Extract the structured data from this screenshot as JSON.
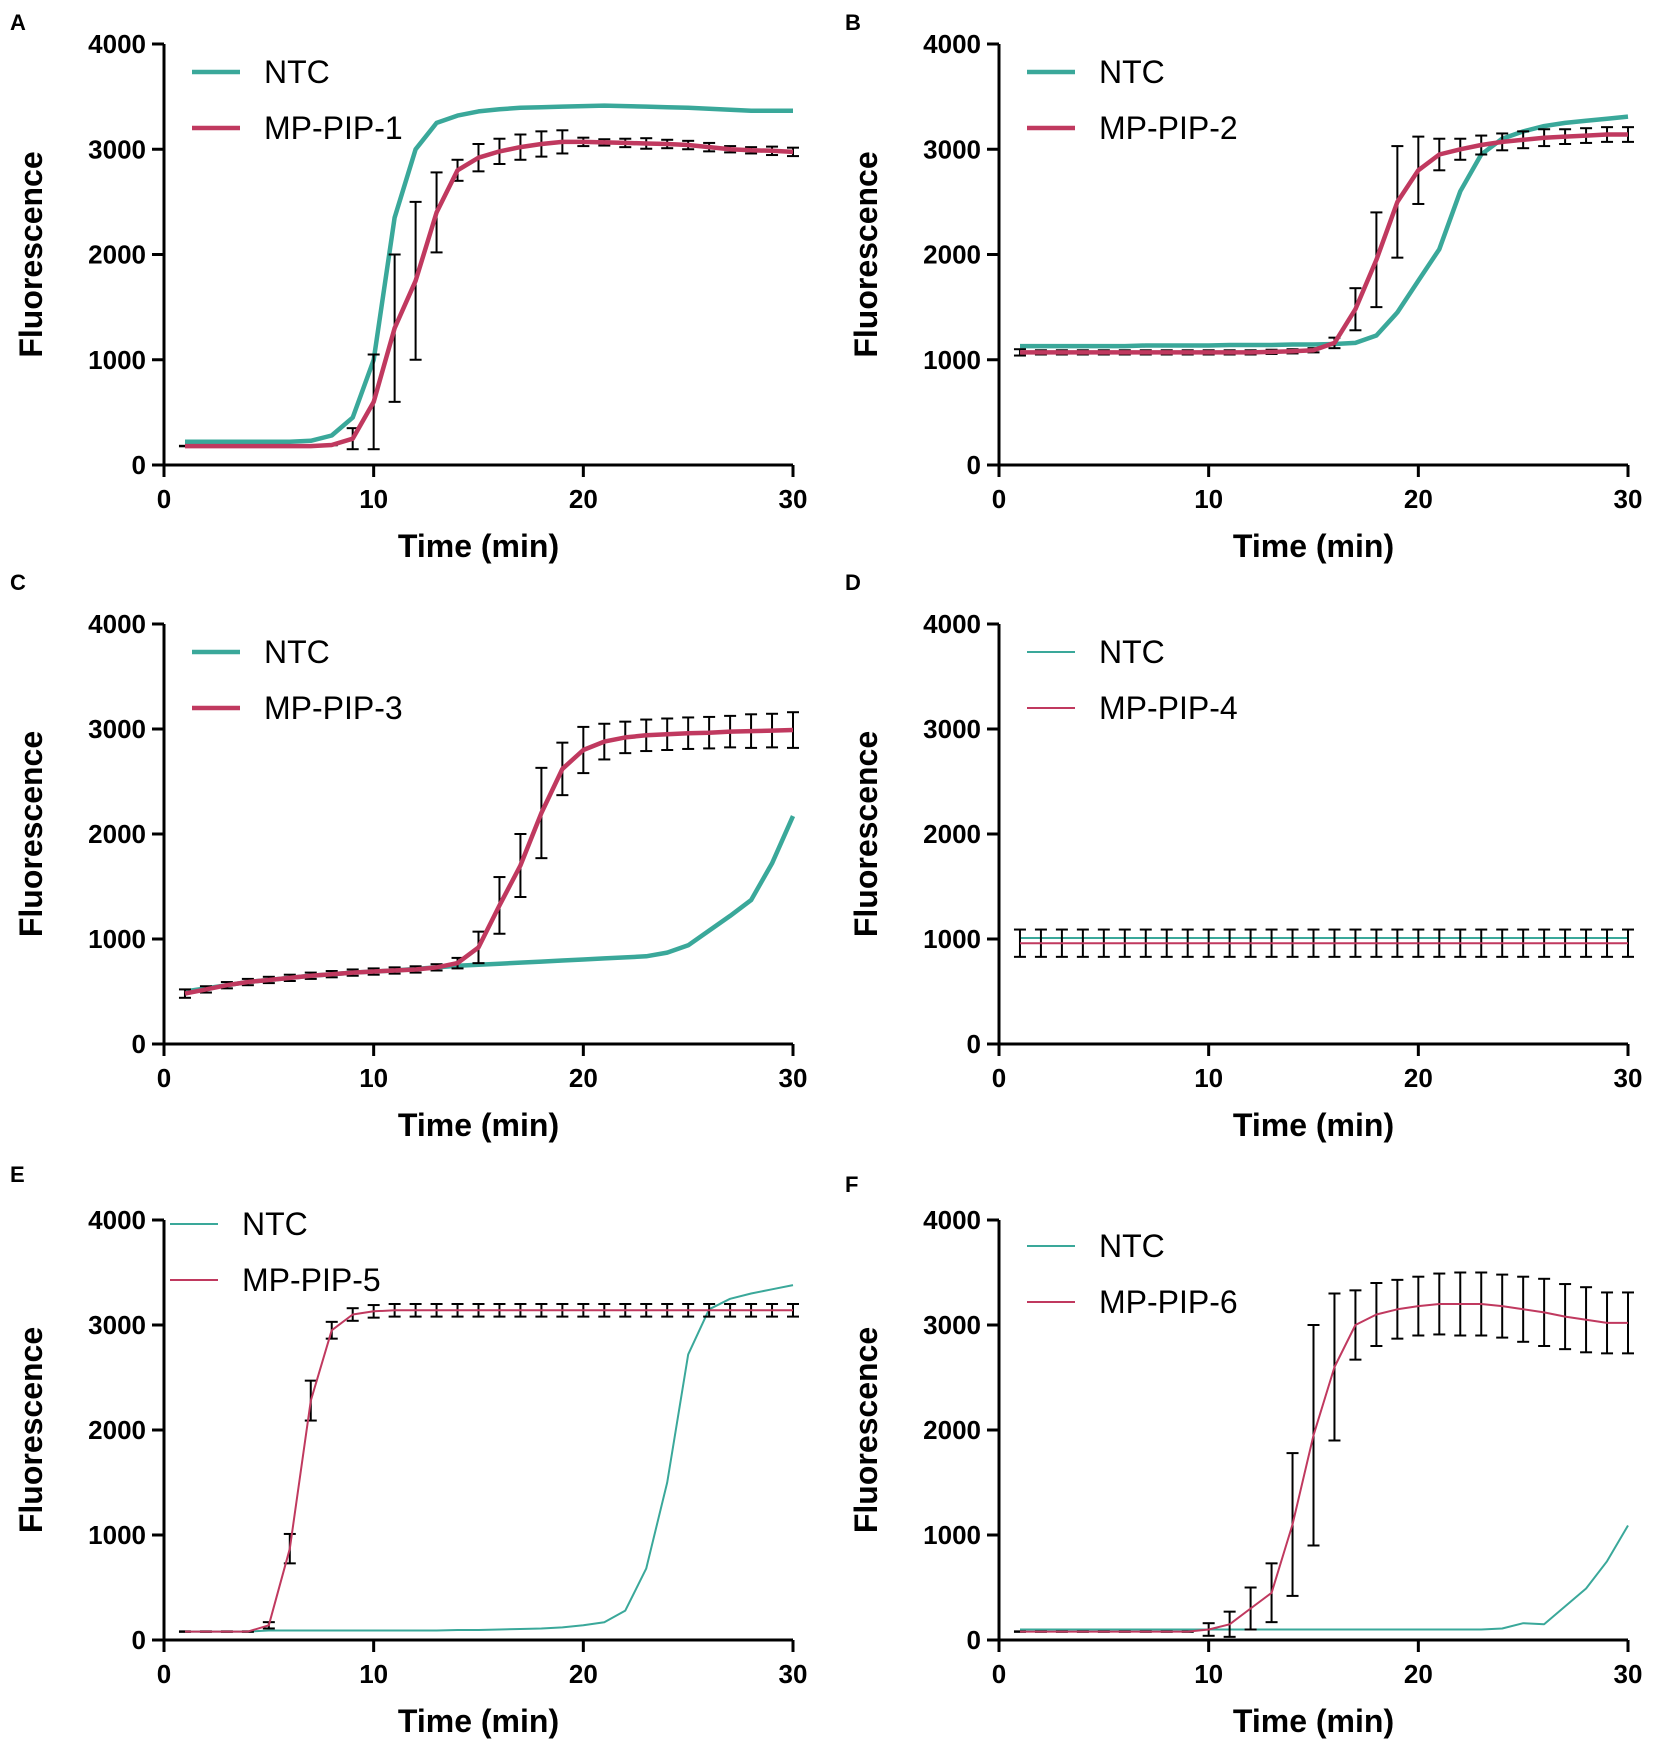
{
  "chart_data": [
    {
      "panel": "A",
      "type": "line",
      "xlabel": "Time (min)",
      "ylabel": "Fluorescence",
      "xlim": [
        0,
        30
      ],
      "ylim": [
        0,
        4000
      ],
      "xticks": [
        0,
        10,
        20,
        30
      ],
      "yticks": [
        0,
        1000,
        2000,
        3000,
        4000
      ],
      "x": [
        1,
        2,
        3,
        4,
        5,
        6,
        7,
        8,
        9,
        10,
        11,
        12,
        13,
        14,
        15,
        16,
        17,
        18,
        19,
        20,
        21,
        22,
        23,
        24,
        25,
        26,
        27,
        28,
        29,
        30
      ],
      "series": [
        {
          "name": "NTC",
          "color": "#3aa89a",
          "values": [
            220,
            220,
            220,
            220,
            220,
            220,
            230,
            280,
            450,
            1000,
            2350,
            3000,
            3250,
            3320,
            3360,
            3380,
            3395,
            3400,
            3405,
            3410,
            3415,
            3410,
            3405,
            3400,
            3395,
            3385,
            3375,
            3365,
            3365,
            3365
          ]
        },
        {
          "name": "MP-PIP-1",
          "color": "#c0395f",
          "values": [
            180,
            180,
            180,
            180,
            180,
            180,
            180,
            190,
            250,
            600,
            1300,
            1750,
            2400,
            2800,
            2920,
            2980,
            3020,
            3050,
            3070,
            3070,
            3065,
            3060,
            3055,
            3050,
            3040,
            3020,
            3000,
            2990,
            2985,
            2975
          ],
          "errors": [
            0,
            0,
            0,
            0,
            0,
            0,
            0,
            0,
            100,
            450,
            700,
            750,
            380,
            100,
            130,
            120,
            120,
            120,
            110,
            40,
            30,
            40,
            50,
            40,
            40,
            40,
            30,
            30,
            40,
            40
          ]
        }
      ]
    },
    {
      "panel": "B",
      "type": "line",
      "xlabel": "Time (min)",
      "ylabel": "Fluorescence",
      "xlim": [
        0,
        30
      ],
      "ylim": [
        0,
        4000
      ],
      "xticks": [
        0,
        10,
        20,
        30
      ],
      "yticks": [
        0,
        1000,
        2000,
        3000,
        4000
      ],
      "x": [
        1,
        2,
        3,
        4,
        5,
        6,
        7,
        8,
        9,
        10,
        11,
        12,
        13,
        14,
        15,
        16,
        17,
        18,
        19,
        20,
        21,
        22,
        23,
        24,
        25,
        26,
        27,
        28,
        29,
        30
      ],
      "series": [
        {
          "name": "NTC",
          "color": "#3aa89a",
          "values": [
            1130,
            1130,
            1130,
            1130,
            1130,
            1130,
            1135,
            1135,
            1135,
            1135,
            1140,
            1140,
            1140,
            1145,
            1145,
            1150,
            1160,
            1230,
            1450,
            1750,
            2050,
            2600,
            2950,
            3100,
            3170,
            3220,
            3250,
            3270,
            3290,
            3310
          ]
        },
        {
          "name": "MP-PIP-2",
          "color": "#c0395f",
          "values": [
            1070,
            1070,
            1070,
            1070,
            1070,
            1070,
            1070,
            1070,
            1070,
            1070,
            1070,
            1070,
            1075,
            1080,
            1090,
            1160,
            1480,
            1950,
            2500,
            2800,
            2950,
            3000,
            3040,
            3070,
            3090,
            3110,
            3120,
            3130,
            3140,
            3140
          ],
          "errors": [
            30,
            20,
            20,
            20,
            20,
            20,
            20,
            20,
            20,
            20,
            20,
            20,
            20,
            20,
            20,
            50,
            200,
            450,
            530,
            320,
            150,
            100,
            90,
            80,
            80,
            80,
            70,
            70,
            70,
            70
          ]
        }
      ]
    },
    {
      "panel": "C",
      "type": "line",
      "xlabel": "Time (min)",
      "ylabel": "Fluorescence",
      "xlim": [
        0,
        30
      ],
      "ylim": [
        0,
        4000
      ],
      "xticks": [
        0,
        10,
        20,
        30
      ],
      "yticks": [
        0,
        1000,
        2000,
        3000,
        4000
      ],
      "x": [
        1,
        2,
        3,
        4,
        5,
        6,
        7,
        8,
        9,
        10,
        11,
        12,
        13,
        14,
        15,
        16,
        17,
        18,
        19,
        20,
        21,
        22,
        23,
        24,
        25,
        26,
        27,
        28,
        29,
        30
      ],
      "series": [
        {
          "name": "NTC",
          "color": "#3aa89a",
          "values": [
            500,
            530,
            560,
            590,
            610,
            630,
            650,
            665,
            680,
            690,
            700,
            715,
            730,
            745,
            755,
            765,
            775,
            785,
            795,
            805,
            815,
            825,
            835,
            870,
            940,
            1080,
            1220,
            1370,
            1720,
            2170
          ]
        },
        {
          "name": "MP-PIP-3",
          "color": "#c0395f",
          "values": [
            480,
            520,
            560,
            590,
            610,
            630,
            650,
            665,
            680,
            690,
            700,
            710,
            730,
            770,
            920,
            1320,
            1700,
            2200,
            2620,
            2800,
            2880,
            2920,
            2940,
            2950,
            2960,
            2965,
            2975,
            2980,
            2985,
            2990
          ],
          "errors": [
            40,
            30,
            30,
            30,
            30,
            30,
            30,
            30,
            30,
            30,
            30,
            30,
            30,
            50,
            150,
            270,
            300,
            430,
            250,
            220,
            170,
            150,
            150,
            150,
            150,
            150,
            150,
            160,
            160,
            170
          ]
        }
      ]
    },
    {
      "panel": "D",
      "type": "line",
      "xlabel": "Time (min)",
      "ylabel": "Fluorescence",
      "xlim": [
        0,
        30
      ],
      "ylim": [
        0,
        4000
      ],
      "xticks": [
        0,
        10,
        20,
        30
      ],
      "yticks": [
        0,
        1000,
        2000,
        3000,
        4000
      ],
      "x": [
        1,
        2,
        3,
        4,
        5,
        6,
        7,
        8,
        9,
        10,
        11,
        12,
        13,
        14,
        15,
        16,
        17,
        18,
        19,
        20,
        21,
        22,
        23,
        24,
        25,
        26,
        27,
        28,
        29,
        30
      ],
      "series": [
        {
          "name": "NTC",
          "color": "#3aa89a",
          "values": [
            1010,
            1010,
            1010,
            1010,
            1010,
            1010,
            1010,
            1010,
            1010,
            1010,
            1010,
            1010,
            1010,
            1010,
            1010,
            1010,
            1010,
            1010,
            1010,
            1010,
            1010,
            1010,
            1010,
            1010,
            1010,
            1010,
            1010,
            1010,
            1010,
            1010
          ]
        },
        {
          "name": "MP-PIP-4",
          "color": "#c0395f",
          "values": [
            960,
            960,
            960,
            960,
            960,
            960,
            960,
            960,
            960,
            960,
            960,
            960,
            960,
            960,
            960,
            960,
            960,
            960,
            960,
            960,
            960,
            960,
            960,
            960,
            960,
            960,
            960,
            960,
            960,
            960
          ],
          "errors": [
            130,
            130,
            130,
            130,
            130,
            130,
            130,
            130,
            130,
            130,
            130,
            130,
            130,
            130,
            130,
            130,
            130,
            130,
            130,
            130,
            130,
            130,
            130,
            130,
            130,
            130,
            130,
            130,
            130,
            130
          ]
        }
      ]
    },
    {
      "panel": "E",
      "type": "line",
      "xlabel": "Time (min)",
      "ylabel": "Fluorescence",
      "xlim": [
        0,
        30
      ],
      "ylim": [
        0,
        4000
      ],
      "xticks": [
        0,
        10,
        20,
        30
      ],
      "yticks": [
        0,
        1000,
        2000,
        3000,
        4000
      ],
      "x": [
        1,
        2,
        3,
        4,
        5,
        6,
        7,
        8,
        9,
        10,
        11,
        12,
        13,
        14,
        15,
        16,
        17,
        18,
        19,
        20,
        21,
        22,
        23,
        24,
        25,
        26,
        27,
        28,
        29,
        30
      ],
      "series": [
        {
          "name": "NTC",
          "color": "#3aa89a",
          "values": [
            80,
            80,
            80,
            80,
            90,
            90,
            90,
            90,
            90,
            90,
            90,
            90,
            90,
            95,
            95,
            100,
            105,
            110,
            120,
            140,
            170,
            280,
            680,
            1500,
            2720,
            3150,
            3250,
            3300,
            3340,
            3380
          ]
        },
        {
          "name": "MP-PIP-5",
          "color": "#c0395f",
          "values": [
            80,
            80,
            80,
            80,
            140,
            870,
            2280,
            2950,
            3100,
            3130,
            3140,
            3140,
            3140,
            3140,
            3140,
            3140,
            3140,
            3140,
            3140,
            3140,
            3140,
            3140,
            3140,
            3140,
            3140,
            3140,
            3140,
            3140,
            3140,
            3140
          ],
          "errors": [
            0,
            0,
            0,
            0,
            30,
            140,
            190,
            80,
            60,
            60,
            60,
            60,
            60,
            60,
            60,
            60,
            60,
            60,
            60,
            60,
            60,
            60,
            60,
            60,
            60,
            60,
            60,
            60,
            60,
            60
          ]
        }
      ]
    },
    {
      "panel": "F",
      "type": "line",
      "xlabel": "Time (min)",
      "ylabel": "Fluorescence",
      "xlim": [
        0,
        30
      ],
      "ylim": [
        0,
        4000
      ],
      "xticks": [
        0,
        10,
        20,
        30
      ],
      "yticks": [
        0,
        1000,
        2000,
        3000,
        4000
      ],
      "x": [
        1,
        2,
        3,
        4,
        5,
        6,
        7,
        8,
        9,
        10,
        11,
        12,
        13,
        14,
        15,
        16,
        17,
        18,
        19,
        20,
        21,
        22,
        23,
        24,
        25,
        26,
        27,
        28,
        29,
        30
      ],
      "series": [
        {
          "name": "NTC",
          "color": "#3aa89a",
          "values": [
            100,
            100,
            100,
            100,
            100,
            100,
            100,
            100,
            100,
            100,
            100,
            100,
            100,
            100,
            100,
            100,
            100,
            100,
            100,
            100,
            100,
            100,
            100,
            110,
            160,
            150,
            320,
            490,
            750,
            1090
          ]
        },
        {
          "name": "MP-PIP-6",
          "color": "#c0395f",
          "values": [
            80,
            80,
            80,
            80,
            80,
            80,
            80,
            80,
            80,
            100,
            150,
            300,
            450,
            1100,
            1950,
            2600,
            3000,
            3100,
            3150,
            3180,
            3200,
            3200,
            3200,
            3180,
            3150,
            3120,
            3080,
            3050,
            3020,
            3020
          ],
          "errors": [
            0,
            0,
            0,
            0,
            0,
            0,
            0,
            0,
            0,
            60,
            120,
            200,
            280,
            680,
            1050,
            700,
            330,
            300,
            280,
            280,
            290,
            300,
            300,
            300,
            310,
            320,
            310,
            310,
            290,
            290
          ]
        }
      ]
    }
  ]
}
